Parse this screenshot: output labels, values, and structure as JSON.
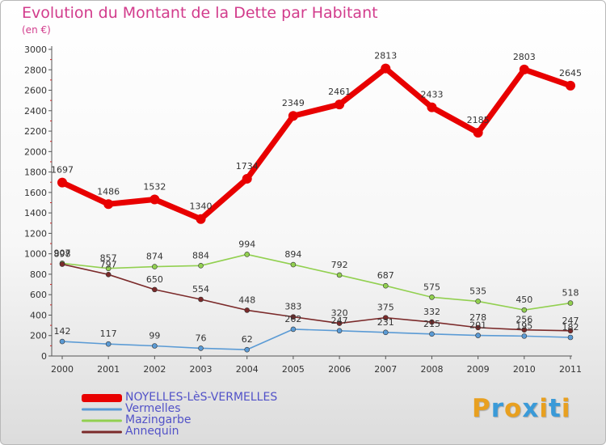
{
  "header": {
    "title": "Evolution du Montant de la Dette par Habitant",
    "subtitle": "(en €)"
  },
  "logo": {
    "text": "Proxiti",
    "letter_colors": [
      "#e8a020",
      "#3a9ad8",
      "#e8a020",
      "#3a9ad8",
      "#e8a020",
      "#3a9ad8",
      "#e8a020"
    ]
  },
  "chart_data": {
    "type": "line",
    "title": "Evolution du Montant de la Dette par Habitant",
    "subtitle": "(en €)",
    "xlabel": "",
    "ylabel": "",
    "ylim": [
      0,
      3000
    ],
    "y_ticks": [
      0,
      200,
      400,
      600,
      800,
      1000,
      1200,
      1400,
      1600,
      1800,
      2000,
      2200,
      2400,
      2600,
      2800,
      3000
    ],
    "grid": false,
    "legend_position": "bottom-left",
    "x": [
      "2000",
      "2001",
      "2002",
      "2003",
      "2004",
      "2005",
      "2006",
      "2007",
      "2008",
      "2009",
      "2010",
      "2011"
    ],
    "series": [
      {
        "name": "NOYELLES-LèS-VERMELLES",
        "color": "#e80000",
        "values": [
          1697,
          1486,
          1532,
          1340,
          1734,
          2349,
          2461,
          2813,
          2433,
          2185,
          2803,
          2645
        ],
        "labels": [
          "1697",
          "1486",
          "1532",
          "1340",
          "1734",
          "2349",
          "2461",
          "2813",
          "2433",
          "2185",
          "2803",
          "2645"
        ]
      },
      {
        "name": "Vermelles",
        "color": "#5b9bd5",
        "values": [
          142,
          117,
          99,
          76,
          62,
          262,
          247,
          231,
          215,
          201,
          195,
          182
        ],
        "labels": [
          "142",
          "117",
          "99",
          "76",
          "62",
          "262",
          "247",
          "231",
          "215",
          "201",
          "195",
          "182"
        ]
      },
      {
        "name": "Mazingarbe",
        "color": "#92d050",
        "values": [
          907,
          857,
          874,
          884,
          994,
          894,
          792,
          687,
          575,
          535,
          450,
          518
        ],
        "labels": [
          "907",
          "857",
          "874",
          "884",
          "994",
          "894",
          "792",
          "687",
          "575",
          "535",
          "450",
          "518"
        ]
      },
      {
        "name": "Annequin",
        "color": "#7b2a2a",
        "values": [
          898,
          797,
          650,
          554,
          448,
          383,
          320,
          375,
          332,
          278,
          256,
          247
        ],
        "labels": [
          "898",
          "797",
          "650",
          "554",
          "448",
          "383",
          "320",
          "375",
          "332",
          "278",
          "256",
          "247"
        ]
      }
    ]
  }
}
